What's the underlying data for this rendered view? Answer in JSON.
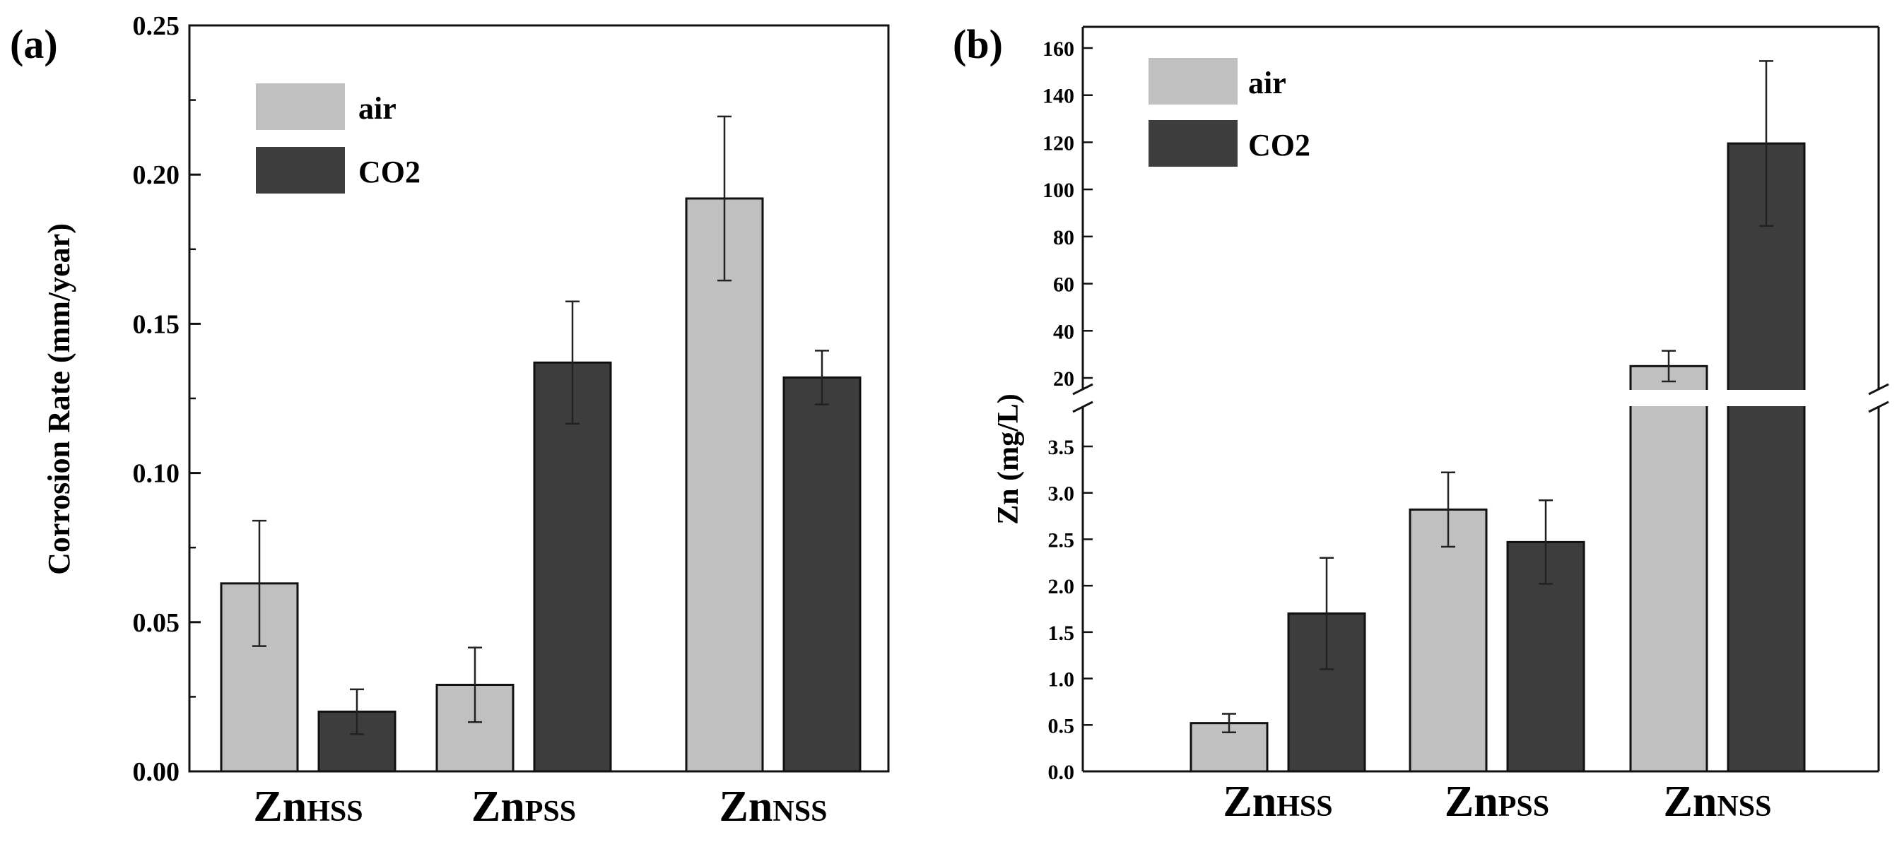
{
  "chart_data": [
    {
      "panel": "(a)",
      "type": "bar",
      "categories": [
        {
          "main": "Zn",
          "sub": "HSS"
        },
        {
          "main": "Zn",
          "sub": "PSS"
        },
        {
          "main": "Zn",
          "sub": "NSS"
        }
      ],
      "series": [
        {
          "name": "air",
          "color": "#c0c0c0",
          "values": [
            0.063,
            0.029,
            0.192
          ],
          "errors": [
            0.021,
            0.0125,
            0.0275
          ]
        },
        {
          "name": "CO2",
          "color": "#3d3d3d",
          "values": [
            0.02,
            0.137,
            0.132
          ],
          "errors": [
            0.0075,
            0.0205,
            0.009
          ]
        }
      ],
      "ylabel": "Corrosion Rate (mm/year)",
      "ylim": [
        0,
        0.25
      ],
      "yticks": [
        "0.00",
        "0.05",
        "0.10",
        "0.15",
        "0.20",
        "0.25"
      ],
      "legend_position": "top-left"
    },
    {
      "panel": "(b)",
      "type": "bar",
      "categories": [
        {
          "main": "Zn",
          "sub": "HSS"
        },
        {
          "main": "Zn",
          "sub": "PSS"
        },
        {
          "main": "Zn",
          "sub": "NSS"
        }
      ],
      "series": [
        {
          "name": "air",
          "color": "#c0c0c0",
          "values": [
            0.52,
            2.82,
            25
          ],
          "errors": [
            0.1,
            0.4,
            6.5
          ]
        },
        {
          "name": "CO2",
          "color": "#3d3d3d",
          "values": [
            1.7,
            2.47,
            119.5
          ],
          "errors": [
            0.6,
            0.45,
            35
          ]
        }
      ],
      "ylabel": "Zn (mg/L)",
      "axis_break": true,
      "lower_range": [
        0,
        3.9
      ],
      "upper_range": [
        15,
        165
      ],
      "lower_yticks": [
        "0.0",
        "0.5",
        "1.0",
        "1.5",
        "2.0",
        "2.5",
        "3.0",
        "3.5"
      ],
      "upper_yticks": [
        "20",
        "40",
        "60",
        "80",
        "100",
        "120",
        "140",
        "160"
      ],
      "legend_position": "top-left"
    }
  ]
}
